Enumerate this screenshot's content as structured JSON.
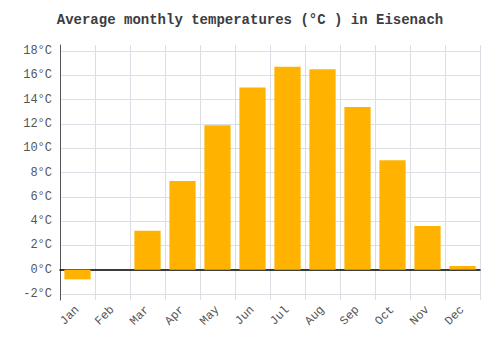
{
  "chart_data": {
    "type": "bar",
    "title": "Average monthly temperatures (°C ) in Eisenach",
    "categories": [
      "Jan",
      "Feb",
      "Mar",
      "Apr",
      "May",
      "Jun",
      "Jul",
      "Aug",
      "Sep",
      "Oct",
      "Nov",
      "Dec"
    ],
    "values": [
      -0.8,
      0.0,
      3.2,
      7.3,
      11.9,
      15.0,
      16.7,
      16.5,
      13.4,
      9.0,
      3.6,
      0.3
    ],
    "color": "#FFB300",
    "ylim": [
      -2.5,
      18.5
    ],
    "yticks": [
      {
        "value": -2,
        "label": "-2°C"
      },
      {
        "value": 0,
        "label": "0°C"
      },
      {
        "value": 2,
        "label": "2°C"
      },
      {
        "value": 4,
        "label": "4°C"
      },
      {
        "value": 6,
        "label": "6°C"
      },
      {
        "value": 8,
        "label": "8°C"
      },
      {
        "value": 10,
        "label": "10°C"
      },
      {
        "value": 12,
        "label": "12°C"
      },
      {
        "value": 14,
        "label": "14°C"
      },
      {
        "value": 16,
        "label": "16°C"
      },
      {
        "value": 18,
        "label": "18°C"
      }
    ],
    "grid": true
  }
}
